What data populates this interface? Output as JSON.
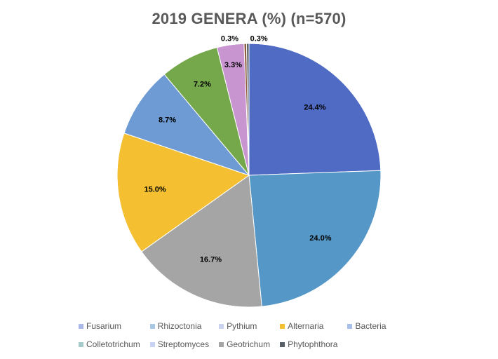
{
  "chart_data": {
    "type": "pie",
    "title": "2019 GENERA (%) (n=570)",
    "slices": [
      {
        "name": "Fusarium",
        "value": 24.4,
        "label": "24.4%",
        "color": "#4F6BC4"
      },
      {
        "name": "Rhizoctonia",
        "value": 24.0,
        "label": "24.0%",
        "color": "#5597C6"
      },
      {
        "name": "Pythium",
        "value": 16.7,
        "label": "16.7%",
        "color": "#A5A5A5"
      },
      {
        "name": "Alternaria",
        "value": 15.0,
        "label": "15.0%",
        "color": "#F4C032"
      },
      {
        "name": "Bacteria",
        "value": 8.7,
        "label": "8.7%",
        "color": "#6F9BD4"
      },
      {
        "name": "Colletotrichum",
        "value": 7.2,
        "label": "7.2%",
        "color": "#74A84B"
      },
      {
        "name": "Streptomyces",
        "value": 3.3,
        "label": "3.3%",
        "color": "#C895D1"
      },
      {
        "name": "Geotrichum",
        "value": 0.3,
        "label": "0.3%",
        "color": "#8C5A3C"
      },
      {
        "name": "Phytophthora",
        "value": 0.3,
        "label": "0.3%",
        "color": "#595F66"
      }
    ],
    "legend": {
      "placement": "bottom",
      "entries": [
        {
          "name": "Fusarium",
          "color": "#A9B8E8"
        },
        {
          "name": "Rhizoctonia",
          "color": "#A8C8E6"
        },
        {
          "name": "Pythium",
          "color": "#C9D3EF"
        },
        {
          "name": "Alternaria",
          "color": "#F4C032"
        },
        {
          "name": "Bacteria",
          "color": "#A9C0EE"
        },
        {
          "name": "Colletotrichum",
          "color": "#A6C9C9"
        },
        {
          "name": "Streptomyces",
          "color": "#C8D2F2"
        },
        {
          "name": "Geotrichum",
          "color": "#A5A5A5"
        },
        {
          "name": "Phytophthora",
          "color": "#595F66"
        }
      ]
    }
  }
}
